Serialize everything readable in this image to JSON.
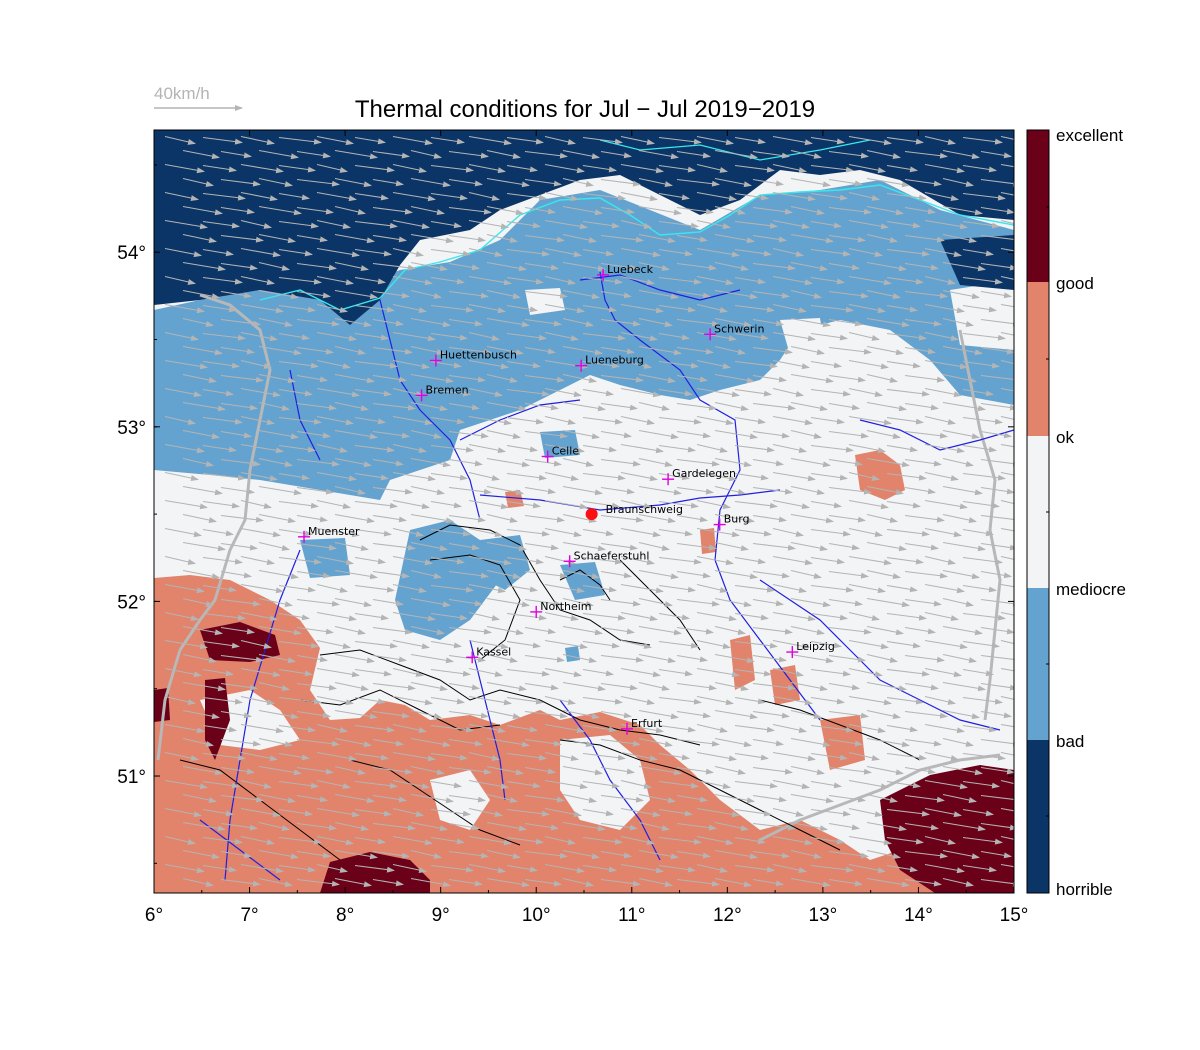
{
  "title": "Thermal conditions for Jul − Jul  2019−2019",
  "wind_scale": {
    "label": "40km/h",
    "color": "#b4b4b4"
  },
  "colors": {
    "horrible": "#0b3566",
    "bad": "#64a3cf",
    "mediocre": "#f3f4f6",
    "ok": "#f3f4f6",
    "good": "#e2836b",
    "excellent": "#6b0019",
    "rivers": "#2020e0",
    "coast": "#38e8ec",
    "borders": "#b8b8b8",
    "terrain": "#000000",
    "city_marker": "#e000e0",
    "home": "#ff1010"
  },
  "legend": {
    "labels": [
      "excellent",
      "good",
      "ok",
      "mediocre",
      "bad",
      "horrible"
    ]
  },
  "axes": {
    "lon_range": [
      6,
      15
    ],
    "lat_range": [
      50.33,
      54.7
    ],
    "x_ticks": [
      "6°",
      "7°",
      "8°",
      "9°",
      "10°",
      "11°",
      "12°",
      "13°",
      "14°",
      "15°"
    ],
    "y_ticks": [
      {
        "lat": 51,
        "label": "51°"
      },
      {
        "lat": 52,
        "label": "52°"
      },
      {
        "lat": 53,
        "label": "53°"
      },
      {
        "lat": 54,
        "label": "54°"
      }
    ]
  },
  "cities": [
    {
      "name": "Luebeck",
      "lon": 10.7,
      "lat": 53.87
    },
    {
      "name": "Schwerin",
      "lon": 11.82,
      "lat": 53.53
    },
    {
      "name": "Huettenbusch",
      "lon": 8.95,
      "lat": 53.38
    },
    {
      "name": "Lueneburg",
      "lon": 10.47,
      "lat": 53.35
    },
    {
      "name": "Bremen",
      "lon": 8.8,
      "lat": 53.18
    },
    {
      "name": "Celle",
      "lon": 10.12,
      "lat": 52.83
    },
    {
      "name": "Gardelegen",
      "lon": 11.38,
      "lat": 52.7
    },
    {
      "name": "Burg",
      "lon": 11.92,
      "lat": 52.44
    },
    {
      "name": "Muenster",
      "lon": 7.57,
      "lat": 52.37
    },
    {
      "name": "Schaeferstuhl",
      "lon": 10.35,
      "lat": 52.23
    },
    {
      "name": "Northeim",
      "lon": 10.0,
      "lat": 51.94
    },
    {
      "name": "Kassel",
      "lon": 9.33,
      "lat": 51.68
    },
    {
      "name": "Leipzig",
      "lon": 12.68,
      "lat": 51.71
    },
    {
      "name": "Erfurt",
      "lon": 10.95,
      "lat": 51.27
    }
  ],
  "home": {
    "name": "Braunschweig",
    "lon": 10.58,
    "lat": 52.5
  }
}
